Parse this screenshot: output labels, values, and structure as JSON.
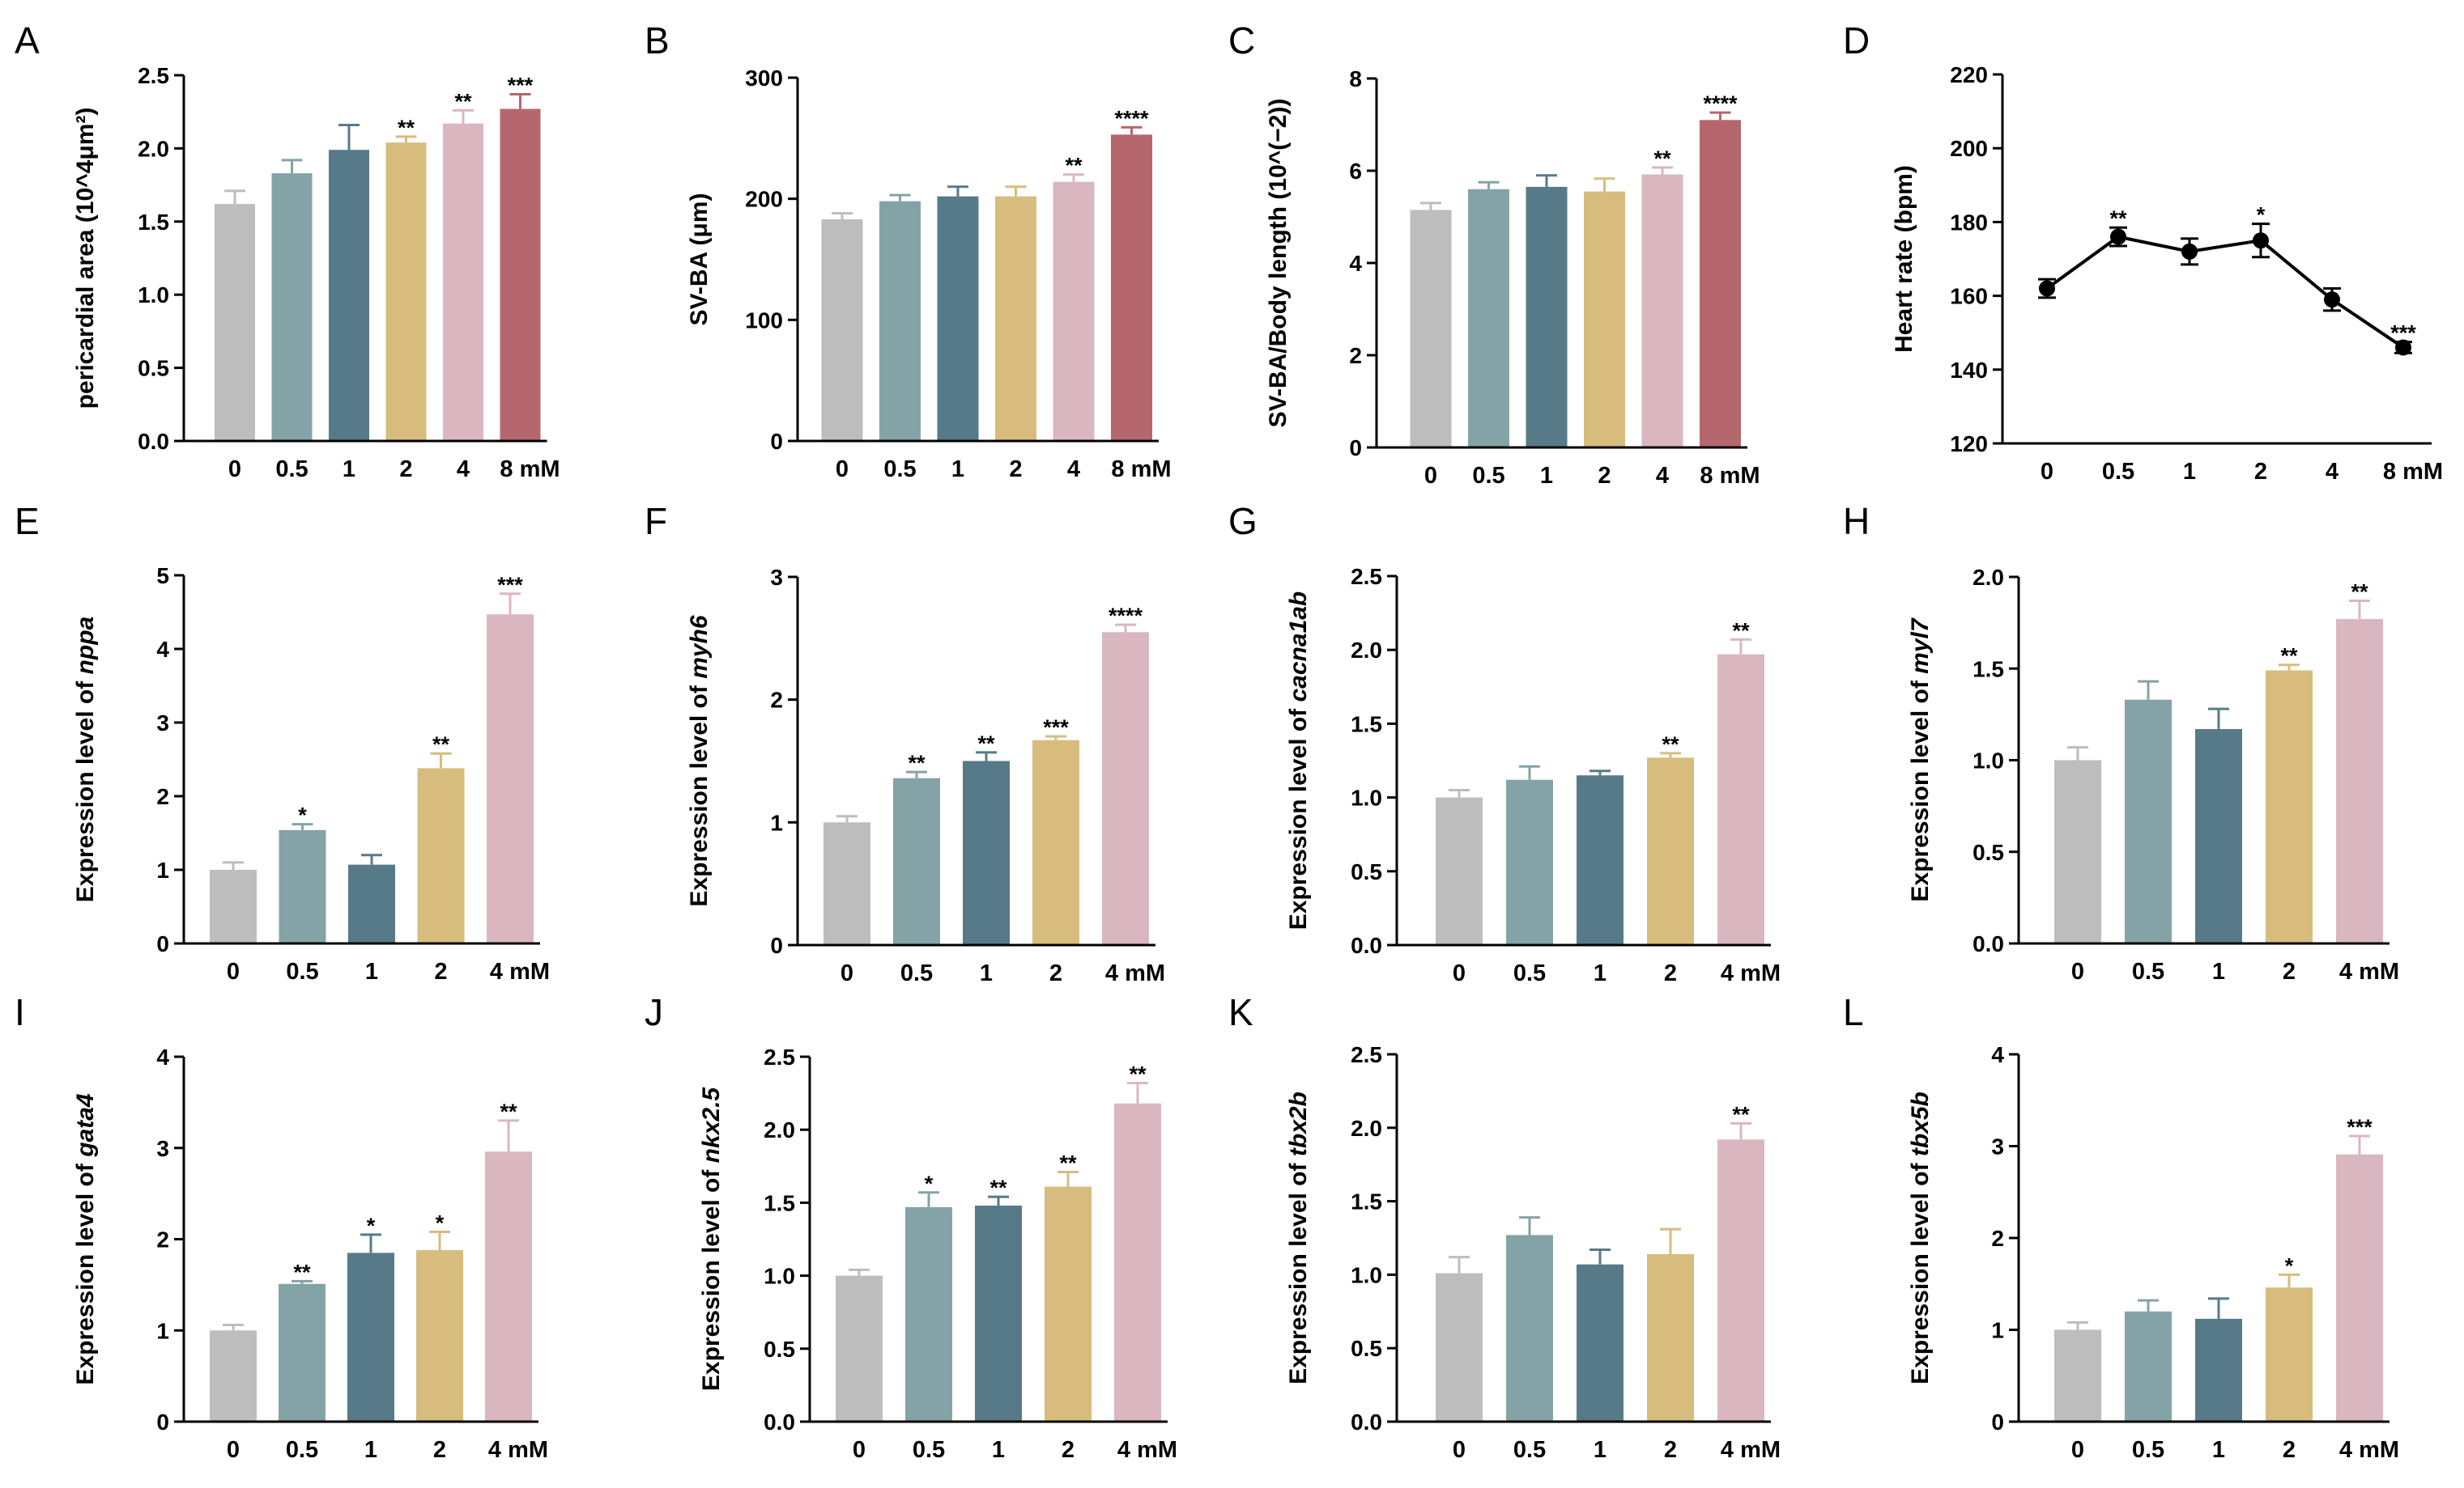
{
  "colors": {
    "c0": "#BDBDBD",
    "c05": "#84A3A7",
    "c1": "#577A89",
    "c2": "#D7BC7E",
    "c4": "#DAB7C0",
    "c8": "#B5676D",
    "line": "#000000"
  },
  "chart_data": [
    {
      "id": "A",
      "type": "bar",
      "panel_label": "A",
      "ylabel": "pericardial area (10^4μm²)",
      "categories": [
        "0",
        "0.5",
        "1",
        "2",
        "4",
        "8 mM"
      ],
      "values": [
        1.62,
        1.83,
        1.99,
        2.04,
        2.17,
        2.27
      ],
      "errors": [
        0.09,
        0.09,
        0.17,
        0.04,
        0.09,
        0.1
      ],
      "significance": [
        "",
        "",
        "",
        "**",
        "**",
        "***"
      ],
      "ylim": [
        0,
        2.5
      ],
      "yticks": [
        0,
        0.5,
        1,
        1.5,
        2,
        2.5
      ],
      "ytick_labels": [
        "0.0",
        "0.5",
        "1.0",
        "1.5",
        "2.0",
        "2.5"
      ]
    },
    {
      "id": "B",
      "type": "bar",
      "panel_label": "B",
      "ylabel": "SV-BA (μm)",
      "categories": [
        "0",
        "0.5",
        "1",
        "2",
        "4",
        "8 mM"
      ],
      "values": [
        183,
        198,
        202,
        202,
        214,
        253
      ],
      "errors": [
        5,
        5,
        8,
        8,
        6,
        6
      ],
      "significance": [
        "",
        "",
        "",
        "",
        "**",
        "****"
      ],
      "ylim": [
        0,
        300
      ],
      "yticks": [
        0,
        100,
        200,
        300
      ],
      "ytick_labels": [
        "0",
        "100",
        "200",
        "300"
      ]
    },
    {
      "id": "C",
      "type": "bar",
      "panel_label": "C",
      "ylabel": "SV-BA/Body length (10^(−2))",
      "categories": [
        "0",
        "0.5",
        "1",
        "2",
        "4",
        "8 mM"
      ],
      "values": [
        5.15,
        5.6,
        5.65,
        5.55,
        5.92,
        7.1
      ],
      "errors": [
        0.15,
        0.15,
        0.25,
        0.28,
        0.15,
        0.16
      ],
      "significance": [
        "",
        "",
        "",
        "",
        "**",
        "****"
      ],
      "ylim": [
        0,
        8
      ],
      "yticks": [
        0,
        2,
        4,
        6,
        8
      ],
      "ytick_labels": [
        "0",
        "2",
        "4",
        "6",
        "8"
      ]
    },
    {
      "id": "D",
      "type": "line",
      "panel_label": "D",
      "ylabel": "Heart rate (bpm)",
      "categories": [
        "0",
        "0.5",
        "1",
        "2",
        "4",
        "8 mM"
      ],
      "values": [
        162,
        176,
        172,
        175,
        159,
        146
      ],
      "errors": [
        2.5,
        2.5,
        3.5,
        4.5,
        3,
        1.5
      ],
      "significance": [
        "",
        "**",
        "",
        "*",
        "",
        "***"
      ],
      "ylim": [
        120,
        220
      ],
      "yticks": [
        120,
        140,
        160,
        180,
        200,
        220
      ],
      "ytick_labels": [
        "120",
        "140",
        "160",
        "180",
        "200",
        "220"
      ]
    },
    {
      "id": "E",
      "type": "bar",
      "panel_label": "E",
      "ylabel_prefix": "Expression level of ",
      "ylabel_gene": "nppa",
      "categories": [
        "0",
        "0.5",
        "1",
        "2",
        "4 mM"
      ],
      "values": [
        1.0,
        1.54,
        1.07,
        2.38,
        4.47
      ],
      "errors": [
        0.1,
        0.08,
        0.13,
        0.2,
        0.28
      ],
      "significance": [
        "",
        "*",
        "",
        "**",
        "***"
      ],
      "ylim": [
        0,
        5
      ],
      "yticks": [
        0,
        1,
        2,
        3,
        4,
        5
      ],
      "ytick_labels": [
        "0",
        "1",
        "2",
        "3",
        "4",
        "5"
      ]
    },
    {
      "id": "F",
      "type": "bar",
      "panel_label": "F",
      "ylabel_prefix": "Expression level of ",
      "ylabel_gene": "myh6",
      "categories": [
        "0",
        "0.5",
        "1",
        "2",
        "4 mM"
      ],
      "values": [
        1.0,
        1.36,
        1.5,
        1.67,
        2.55
      ],
      "errors": [
        0.05,
        0.05,
        0.07,
        0.03,
        0.06
      ],
      "significance": [
        "",
        "**",
        "**",
        "***",
        "****"
      ],
      "ylim": [
        0,
        3
      ],
      "yticks": [
        0,
        1,
        2,
        3
      ],
      "ytick_labels": [
        "0",
        "1",
        "2",
        "3"
      ]
    },
    {
      "id": "G",
      "type": "bar",
      "panel_label": "G",
      "ylabel_prefix": "Expression level of ",
      "ylabel_gene": "cacna1ab",
      "categories": [
        "0",
        "0.5",
        "1",
        "2",
        "4 mM"
      ],
      "values": [
        1.0,
        1.12,
        1.15,
        1.27,
        1.97
      ],
      "errors": [
        0.05,
        0.09,
        0.03,
        0.03,
        0.1
      ],
      "significance": [
        "",
        "",
        "",
        "**",
        "**"
      ],
      "ylim": [
        0,
        2.5
      ],
      "yticks": [
        0,
        0.5,
        1,
        1.5,
        2,
        2.5
      ],
      "ytick_labels": [
        "0.0",
        "0.5",
        "1.0",
        "1.5",
        "2.0",
        "2.5"
      ]
    },
    {
      "id": "H",
      "type": "bar",
      "panel_label": "H",
      "ylabel_prefix": "Expression level of ",
      "ylabel_gene": "myl7",
      "categories": [
        "0",
        "0.5",
        "1",
        "2",
        "4 mM"
      ],
      "values": [
        1.0,
        1.33,
        1.17,
        1.49,
        1.77
      ],
      "errors": [
        0.07,
        0.1,
        0.11,
        0.03,
        0.1
      ],
      "significance": [
        "",
        "",
        "",
        "**",
        "**"
      ],
      "ylim": [
        0,
        2.0
      ],
      "yticks": [
        0,
        0.5,
        1,
        1.5,
        2
      ],
      "ytick_labels": [
        "0.0",
        "0.5",
        "1.0",
        "1.5",
        "2.0"
      ]
    },
    {
      "id": "I",
      "type": "bar",
      "panel_label": "I",
      "ylabel_prefix": "Expression level of ",
      "ylabel_gene": "gata4",
      "categories": [
        "0",
        "0.5",
        "1",
        "2",
        "4 mM"
      ],
      "values": [
        1.0,
        1.51,
        1.85,
        1.88,
        2.96
      ],
      "errors": [
        0.06,
        0.03,
        0.2,
        0.2,
        0.34
      ],
      "significance": [
        "",
        "**",
        "*",
        "*",
        "**"
      ],
      "ylim": [
        0,
        4
      ],
      "yticks": [
        0,
        1,
        2,
        3,
        4
      ],
      "ytick_labels": [
        "0",
        "1",
        "2",
        "3",
        "4"
      ]
    },
    {
      "id": "J",
      "type": "bar",
      "panel_label": "J",
      "ylabel_prefix": "Expression level of ",
      "ylabel_gene": "nkx2.5",
      "categories": [
        "0",
        "0.5",
        "1",
        "2",
        "4 mM"
      ],
      "values": [
        1.0,
        1.47,
        1.48,
        1.61,
        2.18
      ],
      "errors": [
        0.04,
        0.1,
        0.06,
        0.1,
        0.14
      ],
      "significance": [
        "",
        "*",
        "**",
        "**",
        "**"
      ],
      "ylim": [
        0,
        2.5
      ],
      "yticks": [
        0,
        0.5,
        1,
        1.5,
        2,
        2.5
      ],
      "ytick_labels": [
        "0.0",
        "0.5",
        "1.0",
        "1.5",
        "2.0",
        "2.5"
      ]
    },
    {
      "id": "K",
      "type": "bar",
      "panel_label": "K",
      "ylabel_prefix": "Expression level of ",
      "ylabel_gene": "tbx2b",
      "categories": [
        "0",
        "0.5",
        "1",
        "2",
        "4 mM"
      ],
      "values": [
        1.01,
        1.27,
        1.07,
        1.14,
        1.92
      ],
      "errors": [
        0.11,
        0.12,
        0.1,
        0.17,
        0.11
      ],
      "significance": [
        "",
        "",
        "",
        "",
        "**"
      ],
      "ylim": [
        0,
        2.5
      ],
      "yticks": [
        0,
        0.5,
        1,
        1.5,
        2,
        2.5
      ],
      "ytick_labels": [
        "0.0",
        "0.5",
        "1.0",
        "1.5",
        "2.0",
        "2.5"
      ]
    },
    {
      "id": "L",
      "type": "bar",
      "panel_label": "L",
      "ylabel_prefix": "Expression level of ",
      "ylabel_gene": "tbx5b",
      "categories": [
        "0",
        "0.5",
        "1",
        "2",
        "4 mM"
      ],
      "values": [
        1.0,
        1.2,
        1.12,
        1.46,
        2.91
      ],
      "errors": [
        0.08,
        0.12,
        0.22,
        0.14,
        0.2
      ],
      "significance": [
        "",
        "",
        "",
        "*",
        "***"
      ],
      "ylim": [
        0,
        4
      ],
      "yticks": [
        0,
        1,
        2,
        3,
        4
      ],
      "ytick_labels": [
        "0",
        "1",
        "2",
        "3",
        "4"
      ]
    }
  ]
}
